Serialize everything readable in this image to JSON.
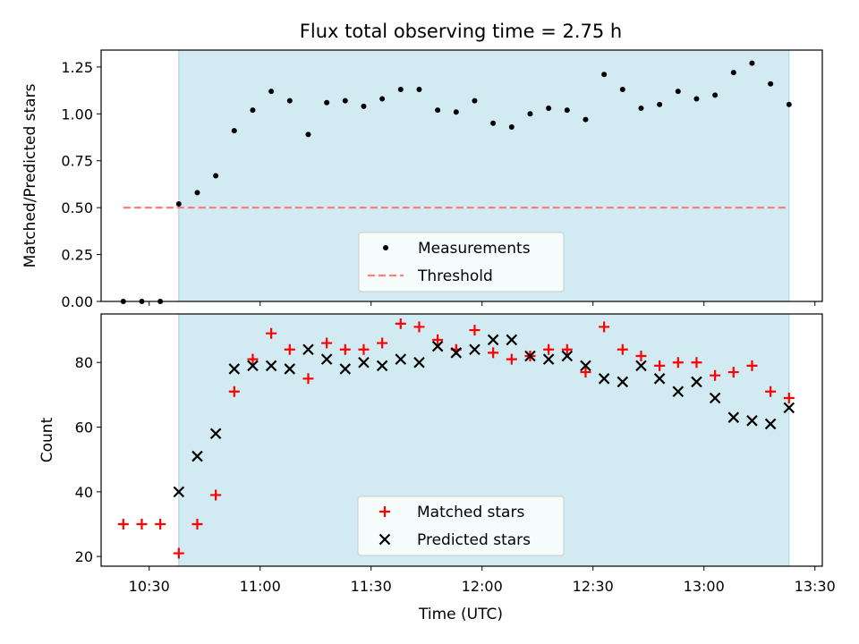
{
  "title": "Flux total observing time = 2.75 h",
  "xlabel": "Time (UTC)",
  "chart_data": [
    {
      "type": "scatter",
      "ylabel": "Matched/Predicted stars",
      "ylim": [
        0.0,
        1.34
      ],
      "yticks": [
        "0.00",
        "0.25",
        "0.50",
        "0.75",
        "1.00",
        "1.25"
      ],
      "xlim": [
        "10:17",
        "13:32"
      ],
      "xticks": [
        "10:30",
        "11:00",
        "11:30",
        "12:00",
        "12:30",
        "13:00",
        "13:30"
      ],
      "show_xtick_labels": false,
      "shaded_span": [
        "10:38",
        "13:23"
      ],
      "shaded_color": "#add8e6",
      "legend_position": "lower center",
      "series": [
        {
          "name": "Measurements",
          "marker": "dot",
          "color": "#000000",
          "x": [
            "10:23",
            "10:28",
            "10:33",
            "10:38",
            "10:43",
            "10:48",
            "10:53",
            "10:58",
            "11:03",
            "11:08",
            "11:13",
            "11:18",
            "11:23",
            "11:28",
            "11:33",
            "11:38",
            "11:43",
            "11:48",
            "11:53",
            "11:58",
            "12:03",
            "12:08",
            "12:13",
            "12:18",
            "12:23",
            "12:28",
            "12:33",
            "12:38",
            "12:43",
            "12:48",
            "12:53",
            "12:58",
            "13:03",
            "13:08",
            "13:13",
            "13:18",
            "13:23"
          ],
          "y": [
            0.0,
            0.0,
            0.0,
            0.52,
            0.58,
            0.67,
            0.91,
            1.02,
            1.12,
            1.07,
            0.89,
            1.06,
            1.07,
            1.04,
            1.08,
            1.13,
            1.13,
            1.02,
            1.01,
            1.07,
            0.95,
            0.93,
            1.0,
            1.03,
            1.02,
            0.97,
            1.21,
            1.13,
            1.03,
            1.05,
            1.12,
            1.08,
            1.1,
            1.22,
            1.27,
            1.16,
            1.05
          ]
        },
        {
          "name": "Threshold",
          "marker": "dashed-line",
          "color": "#ff7f7f",
          "x": [
            "10:23",
            "13:23"
          ],
          "y": [
            0.5,
            0.5
          ]
        }
      ]
    },
    {
      "type": "scatter",
      "ylabel": "Count",
      "ylim": [
        17,
        95
      ],
      "yticks": [
        "20",
        "40",
        "60",
        "80"
      ],
      "xlim": [
        "10:17",
        "13:32"
      ],
      "xticks": [
        "10:30",
        "11:00",
        "11:30",
        "12:00",
        "12:30",
        "13:00",
        "13:30"
      ],
      "show_xtick_labels": true,
      "shaded_span": [
        "10:38",
        "13:23"
      ],
      "shaded_color": "#add8e6",
      "legend_position": "lower center",
      "series": [
        {
          "name": "Matched stars",
          "marker": "plus",
          "color": "#ff0000",
          "x": [
            "10:23",
            "10:28",
            "10:33",
            "10:38",
            "10:43",
            "10:48",
            "10:53",
            "10:58",
            "11:03",
            "11:08",
            "11:13",
            "11:18",
            "11:23",
            "11:28",
            "11:33",
            "11:38",
            "11:43",
            "11:48",
            "11:53",
            "11:58",
            "12:03",
            "12:08",
            "12:13",
            "12:18",
            "12:23",
            "12:28",
            "12:33",
            "12:38",
            "12:43",
            "12:48",
            "12:53",
            "12:58",
            "13:03",
            "13:08",
            "13:13",
            "13:18",
            "13:23"
          ],
          "y": [
            30,
            30,
            30,
            21,
            30,
            39,
            71,
            81,
            89,
            84,
            75,
            86,
            84,
            84,
            86,
            92,
            91,
            87,
            84,
            90,
            83,
            81,
            82,
            84,
            84,
            77,
            91,
            84,
            82,
            79,
            80,
            80,
            76,
            77,
            79,
            71,
            69
          ]
        },
        {
          "name": "Predicted stars",
          "marker": "x",
          "color": "#000000",
          "x": [
            "10:38",
            "10:43",
            "10:48",
            "10:53",
            "10:58",
            "11:03",
            "11:08",
            "11:13",
            "11:18",
            "11:23",
            "11:28",
            "11:33",
            "11:38",
            "11:43",
            "11:48",
            "11:53",
            "11:58",
            "12:03",
            "12:08",
            "12:13",
            "12:18",
            "12:23",
            "12:28",
            "12:33",
            "12:38",
            "12:43",
            "12:48",
            "12:53",
            "12:58",
            "13:03",
            "13:08",
            "13:13",
            "13:18",
            "13:23"
          ],
          "y": [
            40,
            51,
            58,
            78,
            79,
            79,
            78,
            84,
            81,
            78,
            80,
            79,
            81,
            80,
            85,
            83,
            84,
            87,
            87,
            82,
            81,
            82,
            79,
            75,
            74,
            79,
            75,
            71,
            74,
            69,
            63,
            62,
            61,
            66
          ]
        }
      ]
    }
  ]
}
